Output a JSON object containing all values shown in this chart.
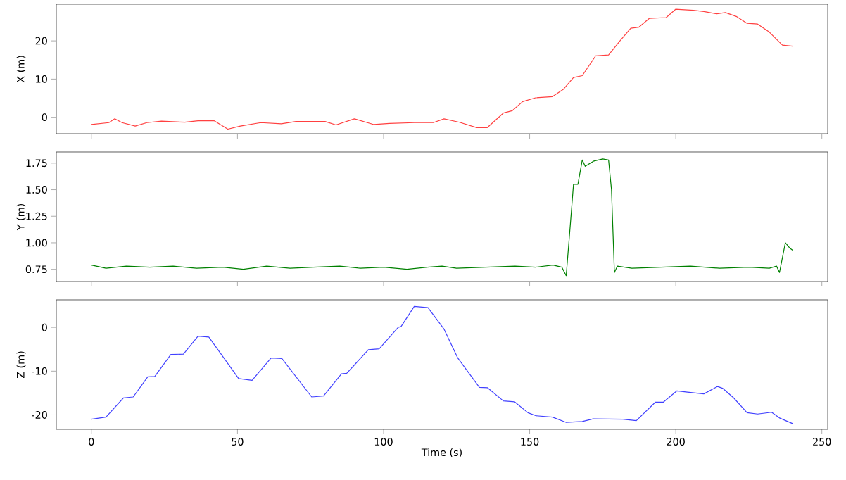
{
  "chart_data": [
    {
      "type": "line",
      "ylabel": "X (m)",
      "xlim": [
        -12,
        252
      ],
      "ylim": [
        -4.3,
        29.6
      ],
      "xticks": [
        0,
        50,
        100,
        150,
        200,
        250
      ],
      "yticks": [
        0,
        10,
        20
      ],
      "tick_labels": "y",
      "series": [
        {
          "color": "#ff4040",
          "x": [
            0,
            6,
            8,
            10.5,
            15,
            19,
            24,
            32,
            36.5,
            42,
            46.7,
            51,
            58,
            65,
            70,
            80,
            83.7,
            90,
            96.7,
            102,
            110.5,
            117,
            120.7,
            126,
            131.9,
            135.5,
            141,
            144,
            147.6,
            152,
            157.8,
            161.5,
            165,
            168,
            172.6,
            177,
            181,
            184.6,
            187.4,
            191,
            196.7,
            200,
            206,
            209.6,
            214,
            217,
            220.7,
            224.4,
            228,
            232,
            236.5,
            240
          ],
          "values": [
            -1.9,
            -1.4,
            -0.4,
            -1.4,
            -2.3,
            -1.4,
            -1,
            -1.3,
            -0.9,
            -0.9,
            -3.1,
            -2.3,
            -1.4,
            -1.7,
            -1.1,
            -1.1,
            -2,
            -0.4,
            -1.9,
            -1.6,
            -1.4,
            -1.4,
            -0.4,
            -1.3,
            -2.7,
            -2.7,
            1.1,
            1.7,
            4.1,
            5.1,
            5.4,
            7.3,
            10.4,
            10.9,
            16.1,
            16.3,
            20.1,
            23.3,
            23.6,
            25.9,
            26.1,
            28.3,
            28,
            27.7,
            27.1,
            27.4,
            26.4,
            24.6,
            24.4,
            22.3,
            18.9,
            18.6
          ]
        }
      ]
    },
    {
      "type": "line",
      "ylabel": "Y (m)",
      "xlim": [
        -12,
        252
      ],
      "ylim": [
        0.635,
        1.855
      ],
      "xticks": [
        0,
        50,
        100,
        150,
        200,
        250
      ],
      "yticks": [
        {
          "value": 0.75,
          "label": "0.75"
        },
        {
          "value": 1.0,
          "label": "1.00"
        },
        {
          "value": 1.25,
          "label": "1.25"
        },
        {
          "value": 1.5,
          "label": "1.50"
        },
        {
          "value": 1.75,
          "label": "1.75"
        }
      ],
      "tick_labels": "y",
      "series": [
        {
          "color": "#008000",
          "x": [
            0,
            5,
            12,
            20,
            28,
            36,
            45,
            52,
            60,
            68,
            76,
            85,
            92,
            100,
            108,
            115,
            120,
            125,
            135,
            145,
            152,
            158,
            161,
            162.5,
            164,
            165,
            166.5,
            168,
            169,
            172,
            175,
            177,
            178,
            179,
            180,
            185,
            195,
            205,
            215,
            225,
            232,
            234.5,
            235.5,
            237.5,
            239,
            240
          ],
          "values": [
            0.79,
            0.76,
            0.78,
            0.77,
            0.78,
            0.76,
            0.77,
            0.75,
            0.78,
            0.76,
            0.77,
            0.78,
            0.76,
            0.77,
            0.75,
            0.77,
            0.78,
            0.76,
            0.77,
            0.78,
            0.77,
            0.79,
            0.77,
            0.69,
            1.2,
            1.55,
            1.55,
            1.78,
            1.72,
            1.77,
            1.79,
            1.78,
            1.5,
            0.72,
            0.78,
            0.76,
            0.77,
            0.78,
            0.76,
            0.77,
            0.76,
            0.78,
            0.72,
            1.0,
            0.95,
            0.93
          ]
        }
      ]
    },
    {
      "type": "line",
      "xlabel": "Time (s)",
      "ylabel": "Z (m)",
      "xlim": [
        -12,
        252
      ],
      "ylim": [
        -23.3,
        6.3
      ],
      "xticks": [
        0,
        50,
        100,
        150,
        200,
        250
      ],
      "yticks": [
        -20,
        -10,
        0
      ],
      "series": [
        {
          "color": "#4040ff",
          "x": [
            0,
            5,
            11,
            14.3,
            19.3,
            21.7,
            27.2,
            31.5,
            36.5,
            40.2,
            50.4,
            55,
            61.5,
            65.2,
            75.4,
            79.4,
            85.6,
            87.4,
            94.8,
            98.5,
            105,
            106,
            110.5,
            115.2,
            120.7,
            125.4,
            132.8,
            135.6,
            141,
            144.8,
            149.4,
            152.2,
            157.8,
            162.4,
            168,
            171.7,
            181.9,
            186.5,
            193,
            195.7,
            200.4,
            204,
            209.6,
            214.3,
            216,
            219.8,
            224.4,
            228,
            232.8,
            235.5,
            240
          ],
          "values": [
            -21,
            -20.5,
            -16.1,
            -15.9,
            -11.3,
            -11.2,
            -6.2,
            -6.1,
            -2,
            -2.2,
            -11.7,
            -12.1,
            -7,
            -7.1,
            -15.9,
            -15.7,
            -10.6,
            -10.5,
            -5.1,
            -4.9,
            0,
            0.2,
            4.8,
            4.5,
            -0.4,
            -7,
            -13.7,
            -13.8,
            -16.8,
            -17,
            -19.5,
            -20.2,
            -20.5,
            -21.7,
            -21.5,
            -20.9,
            -21,
            -21.3,
            -17.1,
            -17.1,
            -14.5,
            -14.8,
            -15.2,
            -13.5,
            -13.9,
            -16.1,
            -19.5,
            -19.8,
            -19.4,
            -20.7,
            -22
          ]
        }
      ]
    }
  ]
}
